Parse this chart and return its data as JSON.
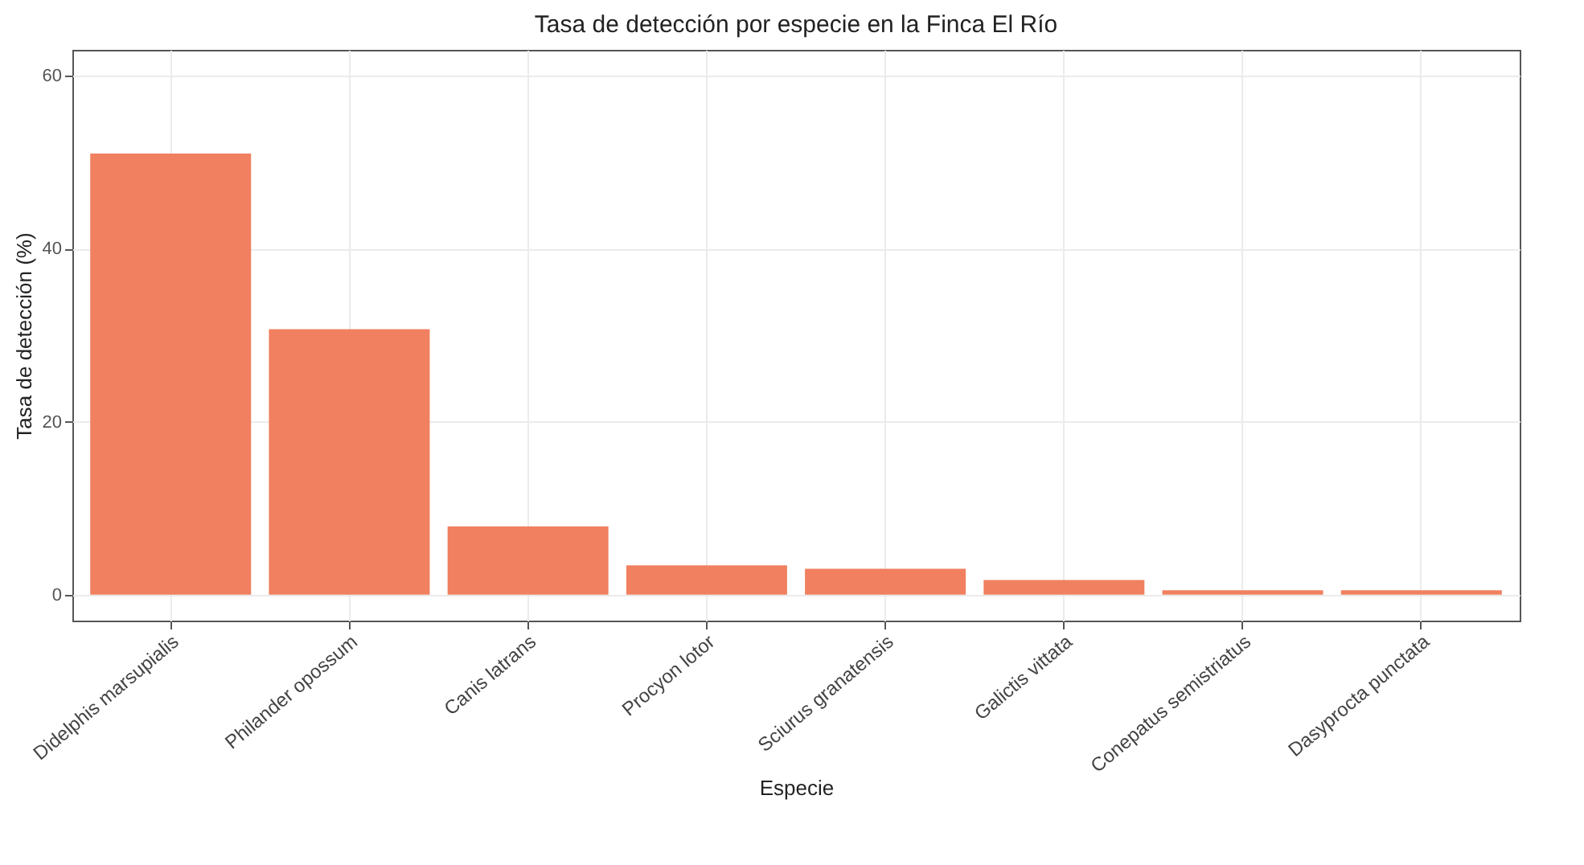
{
  "chart_data": {
    "type": "bar",
    "title": "Tasa de detección por especie en la Finca El Río",
    "xlabel": "Especie",
    "ylabel": "Tasa de detección (%)",
    "categories": [
      "Didelphis marsupialis",
      "Philander opossum",
      "Canis latrans",
      "Procyon lotor",
      "Sciurus granatensis",
      "Galictis vittata",
      "Conepatus semistriatus",
      "Dasyprocta punctata"
    ],
    "values": [
      51.0,
      30.7,
      7.9,
      3.4,
      3.0,
      1.7,
      0.5,
      0.5
    ],
    "color": "#f08060",
    "ylim": [
      -3,
      63
    ],
    "yticks": [
      0,
      20,
      40,
      60
    ],
    "grid": true
  }
}
